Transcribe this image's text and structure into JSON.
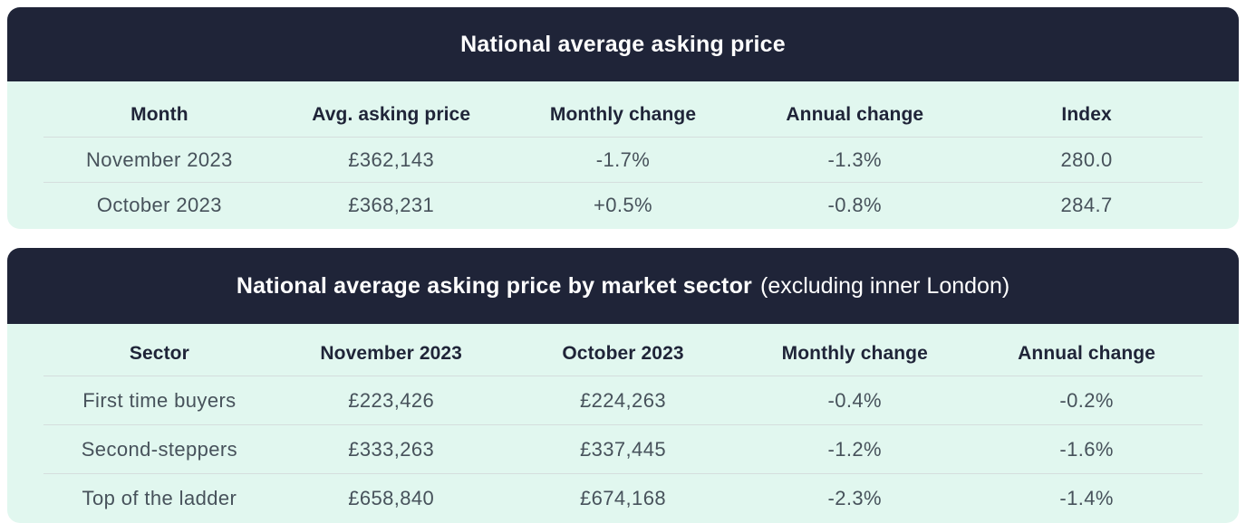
{
  "colors": {
    "page_bg": "#ffffff",
    "header_bg": "#1f2438",
    "header_text": "#ffffff",
    "body_bg": "#e1f7ef",
    "column_header_text": "#1f2438",
    "cell_text": "#47525b",
    "divider": "#d5dedd"
  },
  "chart_data": [
    {
      "type": "table",
      "title": "National average asking price",
      "title_suffix": "",
      "columns": [
        "Month",
        "Avg. asking price",
        "Monthly change",
        "Annual change",
        "Index"
      ],
      "rows": [
        [
          "November 2023",
          "£362,143",
          "-1.7%",
          "-1.3%",
          "280.0"
        ],
        [
          "October 2023",
          "£368,231",
          "+0.5%",
          "-0.8%",
          "284.7"
        ]
      ]
    },
    {
      "type": "table",
      "title": "National average asking price by market sector",
      "title_suffix": "(excluding inner London)",
      "columns": [
        "Sector",
        "November 2023",
        "October 2023",
        "Monthly change",
        "Annual change"
      ],
      "rows": [
        [
          "First time buyers",
          "£223,426",
          "£224,263",
          "-0.4%",
          "-0.2%"
        ],
        [
          "Second-steppers",
          "£333,263",
          "£337,445",
          "-1.2%",
          "-1.6%"
        ],
        [
          "Top of the ladder",
          "£658,840",
          "£674,168",
          "-2.3%",
          "-1.4%"
        ]
      ]
    }
  ]
}
